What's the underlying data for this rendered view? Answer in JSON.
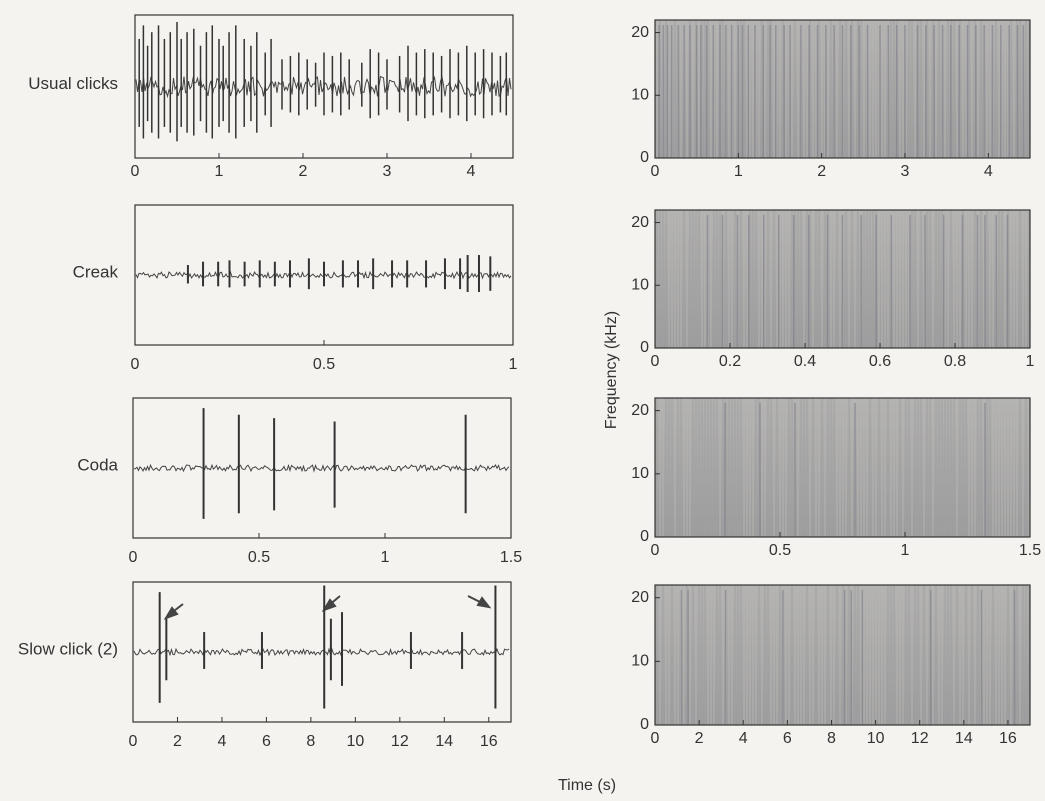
{
  "figure": {
    "x_label": "Time (s)",
    "y_label": "Frequency (kHz)"
  },
  "chart_data": [
    {
      "type": "waveform",
      "label": "Usual clicks",
      "xlim": [
        0,
        4.5
      ],
      "xticks": [
        0,
        1,
        2,
        3,
        4
      ],
      "x": [
        0.05,
        0.1,
        0.15,
        0.2,
        0.28,
        0.35,
        0.42,
        0.5,
        0.55,
        0.62,
        0.7,
        0.78,
        0.85,
        0.92,
        1.0,
        1.05,
        1.12,
        1.2,
        1.3,
        1.38,
        1.45,
        1.55,
        1.62,
        1.75,
        1.85,
        1.95,
        2.05,
        2.15,
        2.25,
        2.35,
        2.45,
        2.55,
        2.7,
        2.8,
        2.9,
        3.0,
        3.15,
        3.25,
        3.35,
        3.45,
        3.55,
        3.65,
        3.75,
        3.85,
        3.95,
        4.05,
        4.15,
        4.25,
        4.35,
        4.42
      ],
      "values": [
        0.7,
        0.9,
        0.6,
        0.8,
        0.9,
        0.7,
        0.8,
        0.95,
        0.7,
        0.8,
        0.85,
        0.6,
        0.8,
        0.9,
        0.7,
        0.6,
        0.8,
        0.9,
        0.7,
        0.6,
        0.8,
        0.5,
        0.7,
        0.4,
        0.45,
        0.5,
        0.4,
        0.35,
        0.5,
        0.45,
        0.5,
        0.4,
        0.35,
        0.55,
        0.5,
        0.4,
        0.45,
        0.6,
        0.5,
        0.55,
        0.5,
        0.45,
        0.55,
        0.5,
        0.6,
        0.5,
        0.55,
        0.5,
        0.45,
        0.5
      ]
    },
    {
      "type": "spectrogram",
      "xlim": [
        0,
        4.5
      ],
      "xticks": [
        0,
        1,
        2,
        3,
        4
      ],
      "ylim": [
        0,
        22
      ],
      "yticks": [
        0,
        10,
        20
      ]
    },
    {
      "type": "waveform",
      "label": "Creak",
      "xlim": [
        0,
        1
      ],
      "xticks": [
        0,
        0.5,
        1
      ],
      "x": [
        0.14,
        0.18,
        0.22,
        0.25,
        0.29,
        0.33,
        0.37,
        0.41,
        0.46,
        0.5,
        0.55,
        0.59,
        0.63,
        0.68,
        0.72,
        0.77,
        0.82,
        0.86,
        0.88,
        0.91,
        0.94
      ],
      "values": [
        0.15,
        0.2,
        0.2,
        0.22,
        0.2,
        0.22,
        0.2,
        0.22,
        0.25,
        0.2,
        0.22,
        0.22,
        0.25,
        0.22,
        0.22,
        0.22,
        0.25,
        0.25,
        0.3,
        0.3,
        0.28
      ]
    },
    {
      "type": "spectrogram",
      "xlim": [
        0,
        1
      ],
      "xticks": [
        0,
        0.2,
        0.4,
        0.6,
        0.8,
        1
      ],
      "ylim": [
        0,
        22
      ],
      "yticks": [
        0,
        10,
        20
      ]
    },
    {
      "type": "waveform",
      "label": "Coda",
      "xlim": [
        0,
        1.5
      ],
      "xticks": [
        0,
        0.5,
        1,
        1.5
      ],
      "x": [
        0.28,
        0.42,
        0.56,
        0.8,
        1.32
      ],
      "values": [
        0.9,
        0.8,
        0.75,
        0.7,
        0.8
      ]
    },
    {
      "type": "spectrogram",
      "xlim": [
        0,
        1.5
      ],
      "xticks": [
        0,
        0.5,
        1,
        1.5
      ],
      "ylim": [
        0,
        22
      ],
      "yticks": [
        0,
        10,
        20
      ]
    },
    {
      "type": "waveform",
      "label": "Slow click (2)",
      "xlim": [
        0,
        17
      ],
      "xticks": [
        0,
        2,
        4,
        6,
        8,
        10,
        12,
        14,
        16
      ],
      "x": [
        1.2,
        1.5,
        3.2,
        5.8,
        8.6,
        8.9,
        9.4,
        12.5,
        14.8,
        16.3
      ],
      "values": [
        0.9,
        0.5,
        0.3,
        0.3,
        1.0,
        0.5,
        0.6,
        0.3,
        0.3,
        1.0
      ]
    },
    {
      "type": "spectrogram",
      "xlim": [
        0,
        17
      ],
      "xticks": [
        0,
        2,
        4,
        6,
        8,
        10,
        12,
        14,
        16
      ],
      "ylim": [
        0,
        22
      ],
      "yticks": [
        0,
        10,
        20
      ]
    }
  ]
}
